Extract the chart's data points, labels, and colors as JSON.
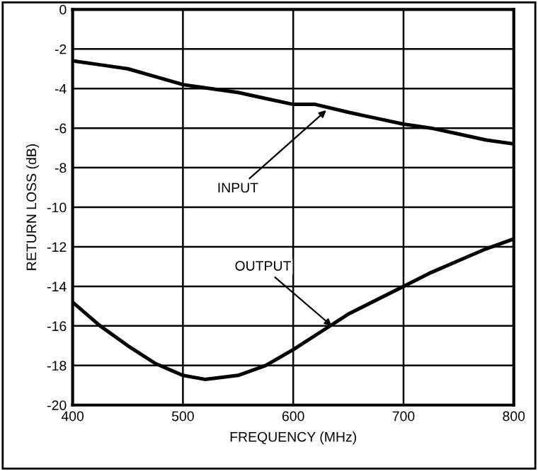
{
  "chart_data": {
    "type": "line",
    "xlabel": "FREQUENCY (MHz)",
    "ylabel": "RETURN LOSS (dB)",
    "x": [
      400,
      425,
      450,
      475,
      500,
      525,
      550,
      575,
      600,
      620,
      650,
      675,
      700,
      725,
      750,
      775,
      800
    ],
    "series": [
      {
        "color": "#000000",
        "values": [
          -2.6,
          -2.8,
          -3.0,
          -3.4,
          -3.8,
          -4.0,
          -4.2,
          -4.5,
          -4.8,
          -4.8,
          -5.2,
          -5.5,
          -5.8,
          -6.0,
          -6.3,
          -6.6,
          -6.8
        ]
      },
      {
        "color": "#000000",
        "x": [
          400,
          425,
          450,
          475,
          500,
          520,
          550,
          575,
          600,
          625,
          650,
          675,
          700,
          725,
          750,
          775,
          800
        ],
        "values": [
          -14.8,
          -16.0,
          -17.0,
          -17.9,
          -18.5,
          -18.7,
          -18.5,
          -18.0,
          -17.2,
          -16.3,
          -15.4,
          -14.7,
          -14.0,
          -13.3,
          -12.7,
          -12.1,
          -11.6
        ]
      }
    ],
    "annotations": [
      {
        "text": "INPUT",
        "x": 630,
        "y": -5.1
      },
      {
        "text": "OUTPUT",
        "x": 635,
        "y": -16
      }
    ],
    "xlim": [
      400,
      800
    ],
    "xticks": [
      400,
      500,
      600,
      700,
      800
    ],
    "ylim": [
      -20,
      0
    ],
    "yticks": [
      -20,
      -18,
      -16,
      -14,
      -12,
      -10,
      -8,
      -6,
      -4,
      -2,
      0
    ],
    "grid": true,
    "marker": "none",
    "line_style": "solid"
  }
}
